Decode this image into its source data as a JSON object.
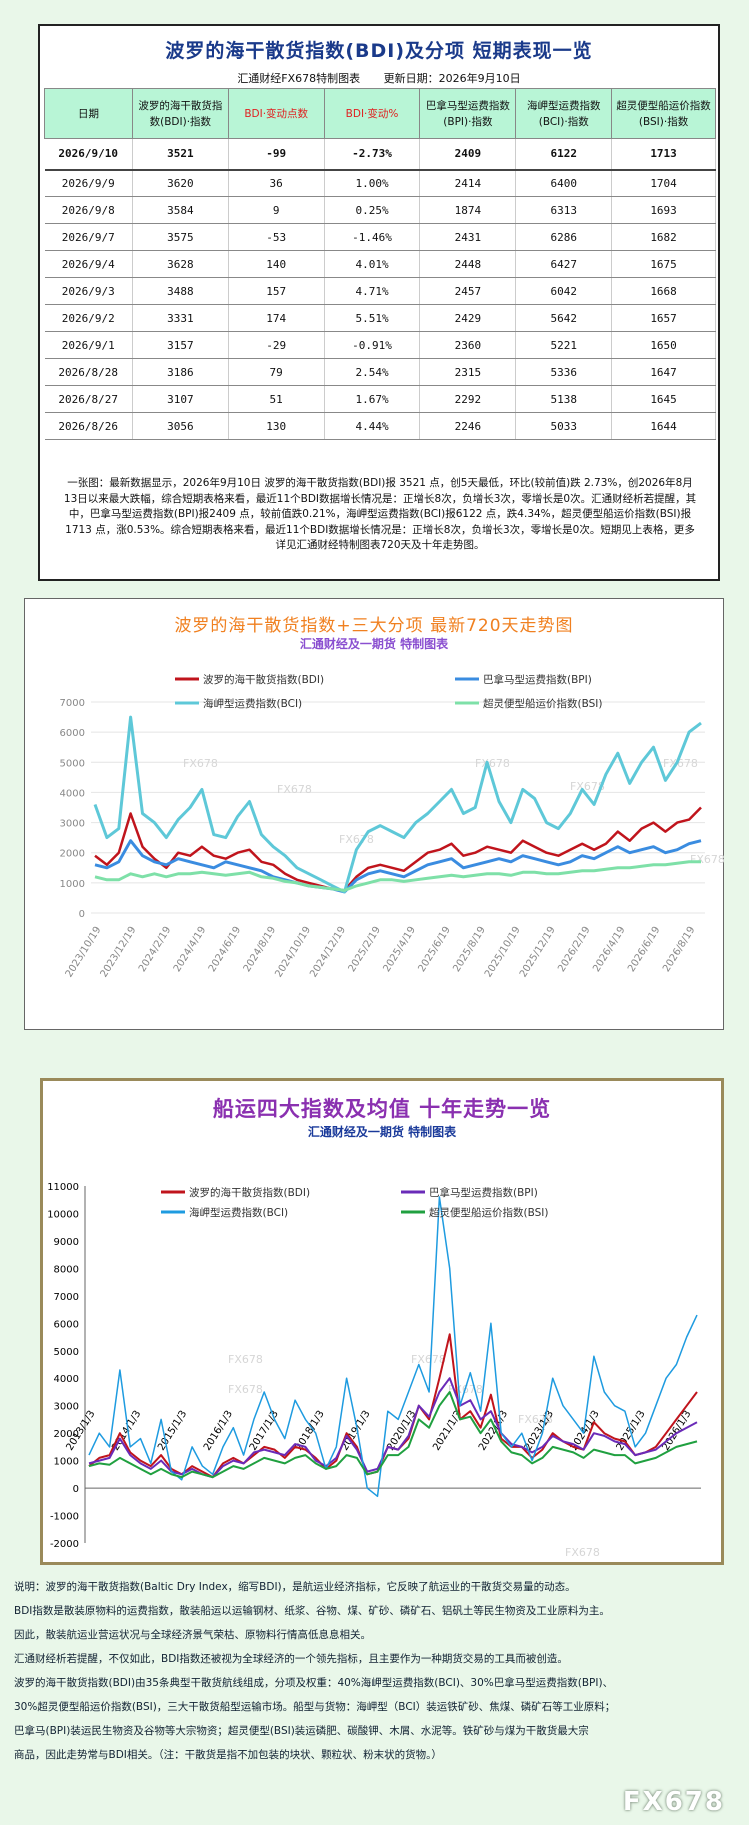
{
  "table_panel": {
    "title": "波罗的海干散货指数(BDI)及分项  短期表现一览",
    "maker": "汇通财经FX678特制图表",
    "update": "更新日期：2026年9月10日",
    "headers": [
      "日期",
      "波罗的海干散货指数(BDI)·指数",
      "BDI·变动点数",
      "BDI·变动%",
      "巴拿马型运费指数(BPI)·指数",
      "海岬型运费指数(BCI)·指数",
      "超灵便型船运价指数(BSI)·指数"
    ],
    "rows": [
      [
        "2026/9/10",
        "3521",
        "-99",
        "-2.73%",
        "2409",
        "6122",
        "1713"
      ],
      [
        "2026/9/9",
        "3620",
        "36",
        "1.00%",
        "2414",
        "6400",
        "1704"
      ],
      [
        "2026/9/8",
        "3584",
        "9",
        "0.25%",
        "1874",
        "6313",
        "1693"
      ],
      [
        "2026/9/7",
        "3575",
        "-53",
        "-1.46%",
        "2431",
        "6286",
        "1682"
      ],
      [
        "2026/9/4",
        "3628",
        "140",
        "4.01%",
        "2448",
        "6427",
        "1675"
      ],
      [
        "2026/9/3",
        "3488",
        "157",
        "4.71%",
        "2457",
        "6042",
        "1668"
      ],
      [
        "2026/9/2",
        "3331",
        "174",
        "5.51%",
        "2429",
        "5642",
        "1657"
      ],
      [
        "2026/9/1",
        "3157",
        "-29",
        "-0.91%",
        "2360",
        "5221",
        "1650"
      ],
      [
        "2026/8/28",
        "3186",
        "79",
        "2.54%",
        "2315",
        "5336",
        "1647"
      ],
      [
        "2026/8/27",
        "3107",
        "51",
        "1.67%",
        "2292",
        "5138",
        "1645"
      ],
      [
        "2026/8/26",
        "3056",
        "130",
        "4.44%",
        "2246",
        "5033",
        "1644"
      ]
    ],
    "summary": "一张图：最新数据显示，2026年9月10日 波罗的海干散货指数(BDI)报 3521 点，创5天最低，环比(较前值)跌 2.73%，创2026年8月13日以来最大跌幅，综合短期表格来看，最近11个BDI数据增长情况是：正增长8次，负增长3次，零增长是0次。汇通财经析若提醒，其中，巴拿马型运费指数(BPI)报2409 点，较前值跌0.21%，海岬型运费指数(BCI)报6122 点，跌4.34%，超灵便型船运价指数(BSI)报1713 点，涨0.53%。综合短期表格来看，最近11个BDI数据增长情况是：正增长8次，负增长3次，零增长是0次。短期见上表格，更多详见汇通财经特制图表720天及十年走势图。"
  },
  "chart_data": [
    {
      "type": "line",
      "title": "波罗的海干散货指数+三大分项  最新720天走势图",
      "subtitle": "汇通财经及一期货  特制图表",
      "x_tick_labels": [
        "2023/10/19",
        "2023/12/19",
        "2024/2/19",
        "2024/4/19",
        "2024/6/19",
        "2024/8/19",
        "2024/10/19",
        "2024/12/19",
        "2025/2/19",
        "2025/4/19",
        "2025/6/19",
        "2025/8/19",
        "2025/10/19",
        "2025/12/19",
        "2026/2/19",
        "2026/4/19",
        "2026/6/19",
        "2026/8/19"
      ],
      "ylim": [
        0,
        7000
      ],
      "y_ticks": [
        0,
        1000,
        2000,
        3000,
        4000,
        5000,
        6000,
        7000
      ],
      "legend_position": "top",
      "grid": true,
      "watermark": "FX678",
      "series": [
        {
          "name": "波罗的海干散货指数(BDI)",
          "color": "#c0141c",
          "width": 2.5,
          "values": [
            1900,
            1600,
            2000,
            3300,
            2200,
            1800,
            1500,
            2000,
            1900,
            2200,
            1900,
            1800,
            2000,
            2100,
            1700,
            1600,
            1300,
            1100,
            1000,
            900,
            800,
            750,
            1200,
            1500,
            1600,
            1500,
            1400,
            1700,
            2000,
            2100,
            2300,
            1900,
            2000,
            2200,
            2100,
            2000,
            2400,
            2200,
            2000,
            1900,
            2100,
            2300,
            2100,
            2300,
            2700,
            2400,
            2800,
            3000,
            2700,
            3000,
            3100,
            3500
          ]
        },
        {
          "name": "巴拿马型运费指数(BPI)",
          "color": "#3a8ce0",
          "width": 3,
          "values": [
            1600,
            1500,
            1700,
            2400,
            1900,
            1700,
            1600,
            1800,
            1700,
            1600,
            1500,
            1700,
            1600,
            1500,
            1400,
            1200,
            1100,
            1000,
            900,
            850,
            800,
            700,
            1100,
            1300,
            1400,
            1300,
            1200,
            1400,
            1600,
            1700,
            1800,
            1500,
            1600,
            1700,
            1800,
            1700,
            1900,
            1800,
            1700,
            1600,
            1700,
            1900,
            1800,
            2000,
            2200,
            2000,
            2100,
            2200,
            2000,
            2100,
            2300,
            2400
          ]
        },
        {
          "name": "海岬型运费指数(BCI)",
          "color": "#5ec8d8",
          "width": 3,
          "values": [
            3600,
            2500,
            2800,
            6500,
            3300,
            3000,
            2500,
            3100,
            3500,
            4100,
            2600,
            2500,
            3200,
            3700,
            2600,
            2200,
            1900,
            1500,
            1300,
            1100,
            900,
            700,
            2100,
            2700,
            2900,
            2700,
            2500,
            3000,
            3300,
            3700,
            4100,
            3300,
            3500,
            5000,
            3700,
            3000,
            4100,
            3800,
            3000,
            2800,
            3300,
            4100,
            3600,
            4600,
            5300,
            4300,
            5000,
            5500,
            4400,
            5000,
            6000,
            6300
          ]
        },
        {
          "name": "超灵便型船运价指数(BSI)",
          "color": "#7ee0a8",
          "width": 3,
          "values": [
            1200,
            1100,
            1100,
            1300,
            1200,
            1300,
            1200,
            1300,
            1300,
            1350,
            1300,
            1250,
            1300,
            1350,
            1200,
            1150,
            1050,
            1000,
            900,
            850,
            800,
            750,
            900,
            1000,
            1100,
            1100,
            1050,
            1100,
            1150,
            1200,
            1250,
            1200,
            1250,
            1300,
            1300,
            1250,
            1350,
            1350,
            1300,
            1300,
            1350,
            1400,
            1400,
            1450,
            1500,
            1500,
            1550,
            1600,
            1600,
            1650,
            1700,
            1700
          ]
        }
      ]
    },
    {
      "type": "line",
      "title": "船运四大指数及均值 十年走势一览",
      "subtitle": "汇通财经及一期货 特制图表",
      "x_tick_labels": [
        "2013/1/3",
        "2014/1/3",
        "2015/1/3",
        "2016/1/3",
        "2017/1/3",
        "2018/1/3",
        "2019/1/3",
        "2020/1/3",
        "2021/1/3",
        "2022/1/3",
        "2023/1/3",
        "2024/1/3",
        "2025/1/3",
        "2026/1/3"
      ],
      "ylim": [
        -2000,
        11000
      ],
      "y_ticks": [
        -2000,
        -1000,
        0,
        1000,
        2000,
        3000,
        4000,
        5000,
        6000,
        7000,
        8000,
        9000,
        10000,
        11000
      ],
      "legend_position": "top",
      "grid": false,
      "watermark": "FX678",
      "series": [
        {
          "name": "波罗的海干散货指数(BDI)",
          "color": "#c0141c",
          "width": 2,
          "values": [
            800,
            1100,
            1200,
            2000,
            1300,
            1000,
            800,
            1200,
            700,
            500,
            800,
            600,
            400,
            900,
            1100,
            900,
            1200,
            1500,
            1400,
            1100,
            1500,
            1400,
            1100,
            700,
            1000,
            2000,
            1500,
            500,
            600,
            1500,
            1400,
            1800,
            3000,
            2500,
            4000,
            5600,
            2500,
            2800,
            2200,
            3400,
            1800,
            1500,
            1500,
            1100,
            1400,
            2000,
            1700,
            1500,
            1400,
            2400,
            2000,
            1800,
            1700,
            1200,
            1300,
            1500,
            2000,
            2500,
            3000,
            3500
          ]
        },
        {
          "name": "巴拿马型运费指数(BPI)",
          "color": "#6a2bb8",
          "width": 2,
          "values": [
            900,
            1000,
            1100,
            1800,
            1200,
            900,
            700,
            1000,
            600,
            500,
            700,
            500,
            400,
            800,
            1000,
            900,
            1300,
            1400,
            1300,
            1200,
            1600,
            1500,
            1000,
            800,
            1100,
            1900,
            1400,
            600,
            700,
            1500,
            1400,
            1900,
            3000,
            2600,
            3500,
            4000,
            3000,
            3200,
            2500,
            2800,
            2000,
            1600,
            1500,
            1300,
            1500,
            1900,
            1700,
            1600,
            1400,
            2000,
            1900,
            1700,
            1600,
            1200,
            1300,
            1400,
            1700,
            2000,
            2200,
            2400
          ]
        },
        {
          "name": "海岬型运费指数(BCI)",
          "color": "#1e9be0",
          "width": 1.5,
          "values": [
            1200,
            2000,
            1500,
            4300,
            1500,
            1800,
            900,
            2500,
            600,
            300,
            1500,
            800,
            500,
            1500,
            2200,
            1200,
            2500,
            3500,
            2500,
            1800,
            3200,
            2500,
            2000,
            700,
            1500,
            4000,
            2200,
            0,
            -300,
            2800,
            2500,
            3500,
            4500,
            3500,
            10600,
            8000,
            3000,
            4200,
            2800,
            6000,
            2000,
            1500,
            2000,
            1000,
            2000,
            4000,
            3000,
            2500,
            2000,
            4800,
            3500,
            3000,
            2800,
            1500,
            2000,
            3000,
            4000,
            4500,
            5500,
            6300
          ]
        },
        {
          "name": "超灵便型船运价指数(BSI)",
          "color": "#20a040",
          "width": 2,
          "values": [
            800,
            900,
            850,
            1100,
            900,
            700,
            500,
            700,
            500,
            400,
            600,
            500,
            400,
            600,
            800,
            700,
            900,
            1100,
            1000,
            900,
            1100,
            1200,
            900,
            700,
            800,
            1200,
            1100,
            500,
            600,
            1200,
            1200,
            1500,
            2500,
            2200,
            3000,
            3500,
            2500,
            2600,
            2000,
            2500,
            1700,
            1300,
            1200,
            900,
            1100,
            1500,
            1400,
            1300,
            1100,
            1400,
            1300,
            1200,
            1200,
            900,
            1000,
            1100,
            1300,
            1500,
            1600,
            1700
          ]
        }
      ]
    }
  ],
  "notes": [
    "说明：波罗的海干散货指数(Baltic Dry Index，缩写BDI)，是航运业经济指标，它反映了航运业的干散货交易量的动态。",
    "BDI指数是散装原物料的运费指数，散装船运以运输钢材、纸浆、谷物、煤、矿砂、磷矿石、铝矾土等民生物资及工业原料为主。",
    "因此，散装航运业营运状况与全球经济景气荣枯、原物料行情高低息息相关。",
    "汇通财经析若提醒，不仅如此，BDI指数还被视为全球经济的一个领先指标，且主要作为一种期货交易的工具而被创造。",
    "波罗的海干散货指数(BDI)由35条典型干散货航线组成，分项及权重：40%海岬型运费指数(BCI)、30%巴拿马型运费指数(BPI)、",
    "30%超灵便型船运价指数(BSI)，三大干散货船型运输市场。船型与货物：海岬型（BCI）装运铁矿砂、焦煤、磷矿石等工业原料；",
    "巴拿马(BPI)装运民生物资及谷物等大宗物资；超灵便型(BSI)装运磷肥、碳酸钾、木屑、水泥等。铁矿砂与煤为干散货最大宗",
    "商品，因此走势常与BDI相关。（注：干散货是指不加包装的块状、颗粒状、粉末状的货物。）"
  ],
  "brand_logo": "FX678"
}
